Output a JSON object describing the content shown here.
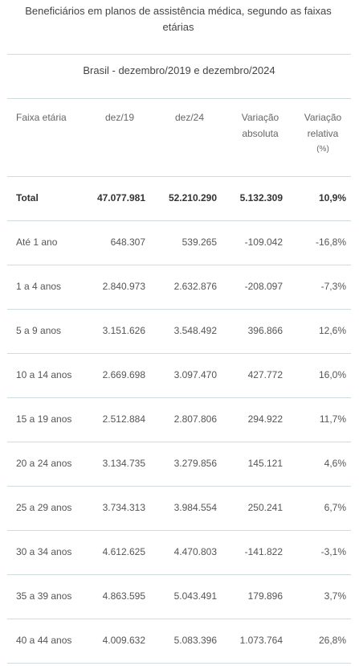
{
  "title": "Beneficiários em planos de assistência médica, segundo as faixas etárias",
  "subtitle": "Brasil - dezembro/2019 e dezembro/2024",
  "headers": {
    "faixa": "Faixa etária",
    "dez19": "dez/19",
    "dez24": "dez/24",
    "var_abs_1": "Variação",
    "var_abs_2": "absoluta",
    "var_rel_1": "Variação",
    "var_rel_2": "relativa",
    "var_rel_3": "(%)"
  },
  "rows": [
    {
      "faixa": "Total",
      "dez19": "47.077.981",
      "dez24": "52.210.290",
      "abs": "5.132.309",
      "rel": "10,9%"
    },
    {
      "faixa": "Até 1 ano",
      "dez19": "648.307",
      "dez24": "539.265",
      "abs": "-109.042",
      "rel": "-16,8%"
    },
    {
      "faixa": "1 a 4 anos",
      "dez19": "2.840.973",
      "dez24": "2.632.876",
      "abs": "-208.097",
      "rel": "-7,3%"
    },
    {
      "faixa": "5 a 9 anos",
      "dez19": "3.151.626",
      "dez24": "3.548.492",
      "abs": "396.866",
      "rel": "12,6%"
    },
    {
      "faixa": "10 a 14 anos",
      "dez19": "2.669.698",
      "dez24": "3.097.470",
      "abs": "427.772",
      "rel": "16,0%"
    },
    {
      "faixa": "15 a 19 anos",
      "dez19": "2.512.884",
      "dez24": "2.807.806",
      "abs": "294.922",
      "rel": "11,7%"
    },
    {
      "faixa": "20 a 24 anos",
      "dez19": "3.134.735",
      "dez24": "3.279.856",
      "abs": "145.121",
      "rel": "4,6%"
    },
    {
      "faixa": "25 a 29 anos",
      "dez19": "3.734.313",
      "dez24": "3.984.554",
      "abs": "250.241",
      "rel": "6,7%"
    },
    {
      "faixa": "30 a 34 anos",
      "dez19": "4.612.625",
      "dez24": "4.470.803",
      "abs": "-141.822",
      "rel": "-3,1%"
    },
    {
      "faixa": "35 a 39 anos",
      "dez19": "4.863.595",
      "dez24": "5.043.491",
      "abs": "179.896",
      "rel": "3,7%"
    },
    {
      "faixa": "40 a 44 anos",
      "dez19": "4.009.632",
      "dez24": "5.083.396",
      "abs": "1.073.764",
      "rel": "26,8%"
    }
  ]
}
